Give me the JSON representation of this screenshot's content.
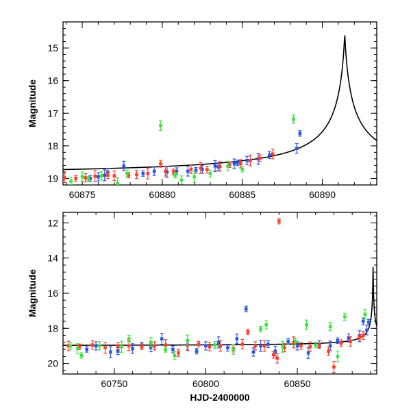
{
  "chart_data": [
    {
      "type": "scatter",
      "panel": "top",
      "title": "",
      "xlabel": "",
      "ylabel": "Magnitude",
      "xlim": [
        60873.8,
        60893.4
      ],
      "ylim": [
        19.2,
        14.2
      ],
      "y_inverted": true,
      "xticks": [
        60875,
        60880,
        60885,
        60890
      ],
      "yticks": [
        15,
        16,
        17,
        18,
        19
      ],
      "series": [
        {
          "color": "#2a55e0",
          "points": [
            [
              60875.5,
              19.0
            ],
            [
              60876.0,
              18.95
            ],
            [
              60876.4,
              18.9
            ],
            [
              60876.6,
              18.8
            ],
            [
              60877.6,
              18.62
            ],
            [
              60878.8,
              18.85
            ],
            [
              60879.5,
              18.78
            ],
            [
              60880.3,
              18.8
            ],
            [
              60880.9,
              18.78
            ],
            [
              60881.6,
              18.78
            ],
            [
              60882.1,
              18.75
            ],
            [
              60882.5,
              18.72
            ],
            [
              60883.3,
              18.62
            ],
            [
              60883.5,
              18.65
            ],
            [
              60884.5,
              18.55
            ],
            [
              60884.7,
              18.52
            ],
            [
              60885.3,
              18.45
            ],
            [
              60886.0,
              18.4
            ],
            [
              60886.7,
              18.28
            ],
            [
              60888.4,
              18.08
            ],
            [
              60888.6,
              17.62
            ]
          ]
        },
        {
          "color": "#ff3b2a",
          "points": [
            [
              60873.9,
              18.98
            ],
            [
              60874.6,
              19.0
            ],
            [
              60875.2,
              18.98
            ],
            [
              60875.8,
              18.93
            ],
            [
              60876.6,
              18.9
            ],
            [
              60877.0,
              18.92
            ],
            [
              60877.9,
              18.9
            ],
            [
              60878.4,
              18.88
            ],
            [
              60879.1,
              18.85
            ],
            [
              60879.9,
              18.55
            ],
            [
              60880.2,
              18.78
            ],
            [
              60880.7,
              18.8
            ],
            [
              60881.8,
              18.72
            ],
            [
              60882.4,
              18.68
            ],
            [
              60882.8,
              18.73
            ],
            [
              60883.6,
              18.63
            ],
            [
              60884.2,
              18.58
            ],
            [
              60884.9,
              18.55
            ],
            [
              60885.5,
              18.45
            ],
            [
              60886.1,
              18.38
            ],
            [
              60886.9,
              18.25
            ]
          ]
        },
        {
          "color": "#3ee23e",
          "points": [
            [
              60874.3,
              19.08
            ],
            [
              60875.0,
              18.95
            ],
            [
              60875.4,
              19.02
            ],
            [
              60876.2,
              18.92
            ],
            [
              60877.2,
              19.15
            ],
            [
              60877.8,
              18.85
            ],
            [
              60879.9,
              17.38
            ],
            [
              60880.8,
              18.9
            ],
            [
              60881.2,
              19.05
            ],
            [
              60882.0,
              18.95
            ],
            [
              60883.0,
              18.85
            ],
            [
              60884.1,
              18.62
            ],
            [
              60885.0,
              18.72
            ],
            [
              60888.2,
              17.18
            ]
          ]
        }
      ],
      "model_curve": {
        "t0": 60891.4,
        "peak_mag": 14.5,
        "base_mag": 18.95
      }
    },
    {
      "type": "scatter",
      "panel": "bottom",
      "title": "",
      "xlabel": "HJD-2400000",
      "ylabel": "Magnitude",
      "xlim": [
        60722,
        60893.4
      ],
      "ylim": [
        20.6,
        11.4
      ],
      "y_inverted": true,
      "xticks": [
        60750,
        60800,
        60850
      ],
      "yticks": [
        12,
        14,
        16,
        18,
        20
      ],
      "series": [
        {
          "color": "#2a55e0",
          "points": [
            [
              60735,
              19.2
            ],
            [
              60740,
              19.0
            ],
            [
              60748,
              19.35
            ],
            [
              60752,
              19.3
            ],
            [
              60760,
              19.15
            ],
            [
              60765,
              18.95
            ],
            [
              60770,
              19.1
            ],
            [
              60776,
              18.6
            ],
            [
              60782,
              19.2
            ],
            [
              60790,
              18.95
            ],
            [
              60795,
              19.3
            ],
            [
              60800,
              19.0
            ],
            [
              60807,
              18.8
            ],
            [
              60812,
              19.1
            ],
            [
              60817,
              18.6
            ],
            [
              60822,
              16.9
            ],
            [
              60826,
              19.35
            ],
            [
              60830,
              19.0
            ],
            [
              60834,
              18.9
            ],
            [
              60838,
              19.3
            ],
            [
              60845,
              18.75
            ],
            [
              60850,
              19.0
            ],
            [
              60856,
              19.4
            ],
            [
              60862,
              18.9
            ],
            [
              60868,
              19.0
            ],
            [
              60872,
              18.7
            ],
            [
              60878,
              18.55
            ],
            [
              60884,
              18.45
            ],
            [
              60886,
              17.6
            ],
            [
              60888,
              18.1
            ],
            [
              60889,
              17.65
            ]
          ]
        },
        {
          "color": "#ff3b2a",
          "points": [
            [
              60725,
              19.0
            ],
            [
              60731,
              19.05
            ],
            [
              60738,
              18.95
            ],
            [
              60745,
              19.1
            ],
            [
              60752,
              19.0
            ],
            [
              60758,
              19.0
            ],
            [
              60765,
              19.05
            ],
            [
              60772,
              19.0
            ],
            [
              60778,
              18.95
            ],
            [
              60785,
              19.4
            ],
            [
              60790,
              19.0
            ],
            [
              60796,
              18.9
            ],
            [
              60802,
              19.05
            ],
            [
              60808,
              19.0
            ],
            [
              60815,
              19.15
            ],
            [
              60820,
              18.9
            ],
            [
              60823,
              18.2
            ],
            [
              60827,
              19.0
            ],
            [
              60832,
              19.0
            ],
            [
              60837,
              19.5
            ],
            [
              60839,
              19.7
            ],
            [
              60840,
              11.9
            ],
            [
              60843,
              19.1
            ],
            [
              60848,
              18.8
            ],
            [
              60852,
              19.0
            ],
            [
              60857,
              19.05
            ],
            [
              60862,
              19.0
            ],
            [
              60867,
              19.3
            ],
            [
              60870,
              20.2
            ],
            [
              60874,
              18.85
            ],
            [
              60879,
              18.75
            ],
            [
              60884,
              18.5
            ],
            [
              60886,
              18.4
            ]
          ]
        },
        {
          "color": "#3ee23e",
          "points": [
            [
              60726,
              19.0
            ],
            [
              60730,
              19.15
            ],
            [
              60732,
              19.55
            ],
            [
              60742,
              19.0
            ],
            [
              60754,
              19.05
            ],
            [
              60758,
              18.6
            ],
            [
              60770,
              18.8
            ],
            [
              60778,
              19.2
            ],
            [
              60783,
              19.55
            ],
            [
              60790,
              18.7
            ],
            [
              60805,
              18.95
            ],
            [
              60815,
              19.2
            ],
            [
              60830,
              18.05
            ],
            [
              60833,
              17.8
            ],
            [
              60842,
              19.05
            ],
            [
              60849,
              18.75
            ],
            [
              60855,
              17.8
            ],
            [
              60860,
              18.95
            ],
            [
              60868,
              17.9
            ],
            [
              60872,
              19.6
            ],
            [
              60876,
              17.35
            ],
            [
              60887,
              17.2
            ]
          ]
        }
      ],
      "model_curve": {
        "t0": 60891.4,
        "peak_mag": 14.5,
        "base_mag": 19.0
      }
    }
  ]
}
